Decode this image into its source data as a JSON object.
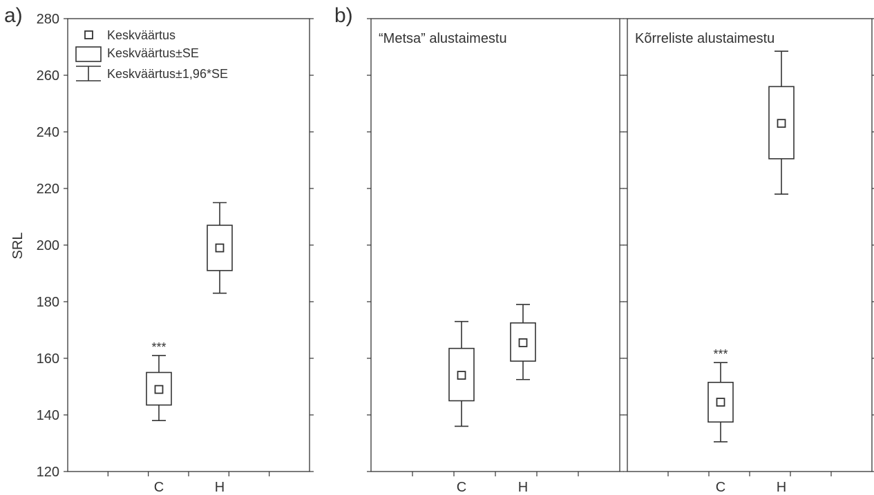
{
  "chart_data": [
    {
      "type": "box",
      "panel_label": "a)",
      "title": "",
      "xlabel": "",
      "ylabel": "SRL",
      "ylim": [
        120,
        280
      ],
      "yticks": [
        120,
        140,
        160,
        180,
        200,
        220,
        240,
        260,
        280
      ],
      "categories": [
        "C",
        "H"
      ],
      "series": [
        {
          "category": "C",
          "mean": 149,
          "se_low": 143.5,
          "se_high": 155,
          "ci_low": 138,
          "ci_high": 161,
          "annotation": "***"
        },
        {
          "category": "H",
          "mean": 199,
          "se_low": 191,
          "se_high": 207,
          "ci_low": 183,
          "ci_high": 215,
          "annotation": ""
        }
      ],
      "legend": {
        "placement": "top-left",
        "entries": [
          "Keskväärtus",
          "Keskväärtus±SE",
          "Keskväärtus±1,96*SE"
        ]
      }
    },
    {
      "type": "box",
      "panel_label": "b)",
      "title": "“Metsa” alustaimestu",
      "ylim": [
        120,
        280
      ],
      "categories": [
        "C",
        "H"
      ],
      "series": [
        {
          "category": "C",
          "mean": 154,
          "se_low": 145,
          "se_high": 163.5,
          "ci_low": 136,
          "ci_high": 173,
          "annotation": ""
        },
        {
          "category": "H",
          "mean": 165.5,
          "se_low": 159,
          "se_high": 172.5,
          "ci_low": 152.5,
          "ci_high": 179,
          "annotation": ""
        }
      ]
    },
    {
      "type": "box",
      "panel_label": "",
      "title": "Kõrreliste alustaimestu",
      "ylim": [
        120,
        280
      ],
      "categories": [
        "C",
        "H"
      ],
      "series": [
        {
          "category": "C",
          "mean": 144.5,
          "se_low": 137.5,
          "se_high": 151.5,
          "ci_low": 130.5,
          "ci_high": 158.5,
          "annotation": "***"
        },
        {
          "category": "H",
          "mean": 243,
          "se_low": 230.5,
          "se_high": 256,
          "ci_low": 218,
          "ci_high": 268.5,
          "annotation": ""
        }
      ]
    }
  ]
}
